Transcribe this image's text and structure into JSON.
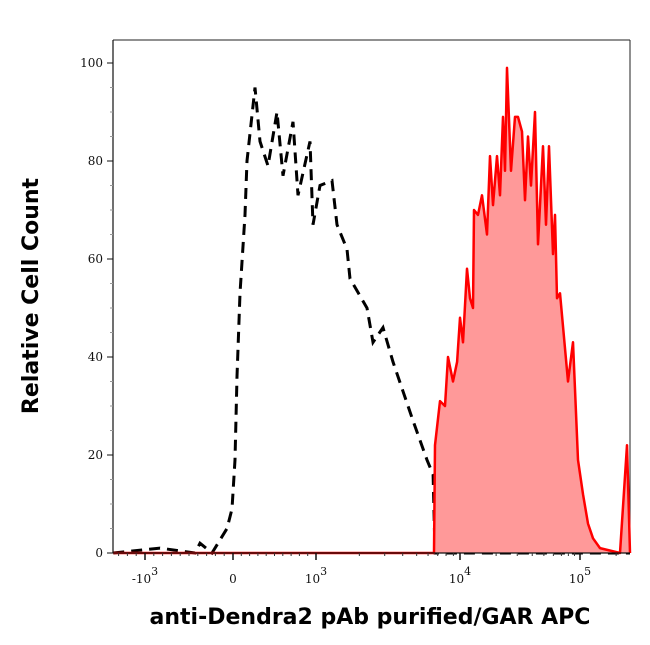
{
  "chart_data": {
    "type": "area",
    "title": "",
    "xlabel": "anti-Dendra2 pAb purified/GAR APC",
    "ylabel": "Relative Cell Count",
    "x_scale": "logicle",
    "xlim": [
      -1360,
      261000
    ],
    "ylim": [
      0,
      100
    ],
    "grid": false,
    "legend": "none",
    "y_ticks": [
      0,
      20,
      40,
      60,
      80,
      100
    ],
    "y_tick_labels": [
      "0",
      "20",
      "40",
      "60",
      "80",
      "100"
    ],
    "x_ticks": [
      {
        "value": -1000,
        "base": "-10",
        "exp": "3"
      },
      {
        "value": 0,
        "base": "0",
        "exp": ""
      },
      {
        "value": 1000,
        "base": "10",
        "exp": "3"
      },
      {
        "value": 10000,
        "base": "10",
        "exp": "4"
      },
      {
        "value": 100000,
        "base": "10",
        "exp": "5"
      }
    ],
    "series": [
      {
        "style": "dashed-line",
        "color": "#000000",
        "x": [
          -1360,
          -830,
          -432,
          -375,
          -239,
          -68,
          -11,
          24,
          48,
          84,
          145,
          169,
          265,
          325,
          422,
          530,
          602,
          723,
          783,
          928,
          964,
          1066,
          1292,
          1399,
          1641,
          1722,
          2260,
          2489,
          2920,
          3425,
          4018,
          4716,
          5904,
          6500,
          6700,
          261000
        ],
        "y": [
          0,
          1,
          0,
          2,
          0,
          5,
          9,
          19,
          36,
          53,
          69,
          80,
          95,
          84,
          79,
          90,
          77,
          88,
          73,
          84,
          67,
          75,
          76,
          67,
          62,
          56,
          50,
          43,
          46,
          39,
          33,
          27,
          19,
          16,
          0,
          0
        ]
      },
      {
        "style": "filled-area",
        "color": "#ff0000",
        "fill": "#ff9999",
        "x": [
          -1360,
          6600,
          6700,
          7260,
          7870,
          8260,
          8940,
          9540,
          10000,
          10590,
          11430,
          12120,
          12830,
          13090,
          14130,
          15250,
          16790,
          17780,
          18840,
          20330,
          21540,
          22820,
          23710,
          24650,
          26610,
          28730,
          30430,
          32860,
          34810,
          36880,
          39070,
          42170,
          44670,
          49180,
          52100,
          55190,
          59570,
          61900,
          64270,
          68130,
          79430,
          87450,
          96200,
          105900,
          116600,
          128300,
          146800,
          215400,
          246400,
          261000
        ],
        "y": [
          0,
          0,
          22,
          31,
          30,
          40,
          35,
          39,
          48,
          43,
          58,
          52,
          50,
          70,
          69,
          73,
          65,
          81,
          71,
          81,
          73,
          89,
          78,
          99,
          78,
          89,
          89,
          86,
          72,
          85,
          75,
          90,
          63,
          83,
          67,
          83,
          61,
          69,
          52,
          53,
          35,
          43,
          19,
          12,
          6,
          3,
          1,
          0,
          22,
          0
        ]
      }
    ]
  }
}
